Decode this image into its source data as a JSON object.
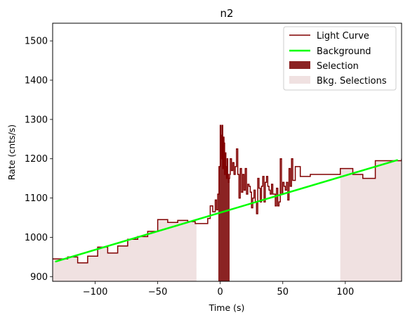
{
  "chart_data": {
    "type": "line",
    "title": "n2",
    "xlabel": "Time (s)",
    "ylabel": "Rate (cnts/s)",
    "xlim": [
      -134,
      145
    ],
    "ylim": [
      888,
      1545
    ],
    "xticks": [
      -100,
      -50,
      0,
      50,
      100
    ],
    "xtick_labels": [
      "−100",
      "−50",
      "0",
      "50",
      "100"
    ],
    "yticks": [
      900,
      1000,
      1100,
      1200,
      1300,
      1400,
      1500
    ],
    "ytick_labels": [
      "900",
      "1000",
      "1100",
      "1200",
      "1300",
      "1400",
      "1500"
    ],
    "grid": false,
    "legend_position": "top-right",
    "colors": {
      "light_curve": "#800000",
      "background": "#00ff00",
      "selection": "#8b2323",
      "bkg_selection": "#f0e1e1"
    },
    "legend": [
      {
        "label": "Light Curve",
        "kind": "line",
        "color": "#800000"
      },
      {
        "label": "Background",
        "kind": "line",
        "color": "#00ff00"
      },
      {
        "label": "Selection",
        "kind": "patch",
        "color": "#8b2323"
      },
      {
        "label": "Bkg. Selections",
        "kind": "patch",
        "color": "#f0e1e1"
      }
    ],
    "light_curve": {
      "name": "Light Curve",
      "x": [
        -134,
        -130,
        -122,
        -114,
        -106,
        -98,
        -90,
        -82,
        -74,
        -66,
        -58,
        -50,
        -42,
        -34,
        -26,
        -20,
        -10,
        -8,
        -6,
        -4,
        -3,
        -2,
        -1,
        0,
        0.5,
        1,
        1.5,
        2,
        2.5,
        3,
        3.5,
        4,
        4.5,
        5,
        5.5,
        6,
        6.5,
        7,
        7.5,
        8,
        9,
        10,
        11,
        12,
        13,
        14,
        15,
        16,
        17,
        18,
        19,
        20,
        21,
        22,
        23,
        24,
        25,
        26,
        27,
        28,
        29,
        30,
        31,
        32,
        33,
        34,
        35,
        36,
        37,
        38,
        39,
        40,
        41,
        42,
        43,
        44,
        45,
        46,
        47,
        48,
        49,
        50,
        51,
        52,
        53,
        54,
        55,
        56,
        57,
        58,
        60,
        64,
        72,
        80,
        88,
        96,
        106,
        114,
        124,
        134,
        145
      ],
      "y": [
        945,
        945,
        950,
        935,
        952,
        975,
        960,
        978,
        995,
        1002,
        1015,
        1045,
        1038,
        1043,
        1040,
        1035,
        1048,
        1080,
        1065,
        1095,
        1070,
        1110,
        1180,
        1285,
        1260,
        1200,
        1285,
        1175,
        1255,
        1240,
        1160,
        1215,
        1180,
        1150,
        1200,
        1160,
        1140,
        1150,
        1160,
        1200,
        1170,
        1190,
        1160,
        1180,
        1225,
        1160,
        1100,
        1175,
        1115,
        1160,
        1120,
        1175,
        1110,
        1135,
        1130,
        1115,
        1075,
        1100,
        1120,
        1090,
        1060,
        1150,
        1125,
        1090,
        1130,
        1155,
        1090,
        1140,
        1155,
        1130,
        1120,
        1110,
        1135,
        1110,
        1110,
        1080,
        1125,
        1080,
        1090,
        1200,
        1110,
        1140,
        1130,
        1120,
        1140,
        1095,
        1175,
        1130,
        1200,
        1145,
        1180,
        1155,
        1160,
        1160,
        1160,
        1175,
        1160,
        1150,
        1195,
        1195,
        1200
      ]
    },
    "background": {
      "name": "Background",
      "x": [
        -132,
        142
      ],
      "y": [
        938,
        1197
      ]
    },
    "selection": {
      "name": "Selection",
      "x_range": [
        -1.5,
        7.5
      ]
    },
    "bkg_selections": {
      "name": "Bkg. Selections",
      "x_ranges": [
        [
          -134,
          -19
        ],
        [
          96,
          145
        ]
      ]
    }
  }
}
